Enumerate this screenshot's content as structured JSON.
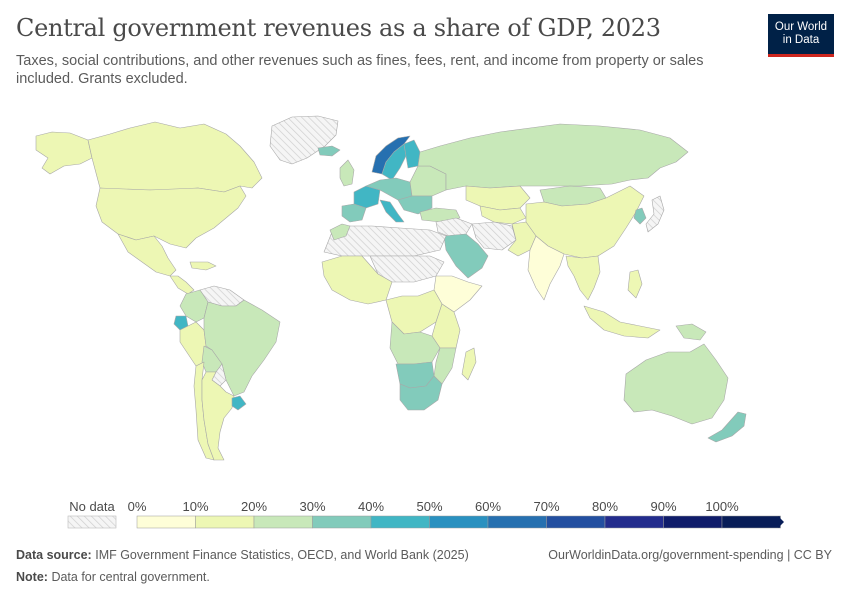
{
  "header": {
    "title": "Central government revenues as a share of GDP, 2023",
    "subtitle": "Taxes, social contributions, and other revenues such as fines, fees, rent, and income from property or sales included. Grants excluded.",
    "logo_line1": "Our World",
    "logo_line2": "in Data"
  },
  "legend": {
    "no_data_label": "No data",
    "ticks": [
      "0%",
      "10%",
      "20%",
      "30%",
      "40%",
      "50%",
      "60%",
      "70%",
      "80%",
      "90%",
      "100%"
    ],
    "bins": [
      {
        "range": "0-10%",
        "color": "#fefed8"
      },
      {
        "range": "10-20%",
        "color": "#edf7b4"
      },
      {
        "range": "20-30%",
        "color": "#c8e8b9"
      },
      {
        "range": "30-40%",
        "color": "#82cbbb"
      },
      {
        "range": "40-50%",
        "color": "#41b6c4"
      },
      {
        "range": "50-60%",
        "color": "#2a91c0"
      },
      {
        "range": "60-70%",
        "color": "#2670b0"
      },
      {
        "range": "70-80%",
        "color": "#234fa0"
      },
      {
        "range": "80-90%",
        "color": "#232c8d"
      },
      {
        "range": "90-100%",
        "color": "#0f1c6a"
      },
      {
        "range": "100%+",
        "color": "#081d58"
      }
    ],
    "no_data_color": "#eeeeee"
  },
  "footer": {
    "source_label": "Data source:",
    "source_text": "IMF Government Finance Statistics, OECD, and World Bank (2025)",
    "note_label": "Note:",
    "note_text": "Data for central government.",
    "url": "OurWorldinData.org/government-spending | CC BY"
  },
  "regions": [
    {
      "id": "greenland",
      "fill": "no-data"
    },
    {
      "id": "canada",
      "fill": "#edf7b4"
    },
    {
      "id": "alaska",
      "fill": "#edf7b4"
    },
    {
      "id": "usa",
      "fill": "#edf7b4"
    },
    {
      "id": "mexico",
      "fill": "#edf7b4"
    },
    {
      "id": "central-america",
      "fill": "#edf7b4"
    },
    {
      "id": "caribbean",
      "fill": "#edf7b4"
    },
    {
      "id": "venezuela",
      "fill": "no-data"
    },
    {
      "id": "colombia",
      "fill": "#c8e8b9"
    },
    {
      "id": "ecuador",
      "fill": "#41b6c4"
    },
    {
      "id": "peru",
      "fill": "#edf7b4"
    },
    {
      "id": "brazil",
      "fill": "#c8e8b9"
    },
    {
      "id": "bolivia",
      "fill": "#c8e8b9"
    },
    {
      "id": "paraguay",
      "fill": "no-data"
    },
    {
      "id": "chile",
      "fill": "#edf7b4"
    },
    {
      "id": "argentina",
      "fill": "#edf7b4"
    },
    {
      "id": "uruguay",
      "fill": "#41b6c4"
    },
    {
      "id": "iceland",
      "fill": "#82cbbb"
    },
    {
      "id": "ireland-uk",
      "fill": "#c8e8b9"
    },
    {
      "id": "norway",
      "fill": "#2670b0"
    },
    {
      "id": "sweden",
      "fill": "#41b6c4"
    },
    {
      "id": "finland",
      "fill": "#41b6c4"
    },
    {
      "id": "france",
      "fill": "#41b6c4"
    },
    {
      "id": "spain-portugal",
      "fill": "#82cbbb"
    },
    {
      "id": "central-europe",
      "fill": "#82cbbb"
    },
    {
      "id": "eastern-europe",
      "fill": "#c8e8b9"
    },
    {
      "id": "italy",
      "fill": "#41b6c4"
    },
    {
      "id": "balkans",
      "fill": "#82cbbb"
    },
    {
      "id": "russia",
      "fill": "#c8e8b9"
    },
    {
      "id": "kazakhstan",
      "fill": "#edf7b4"
    },
    {
      "id": "central-asia",
      "fill": "#edf7b4"
    },
    {
      "id": "mongolia",
      "fill": "#c8e8b9"
    },
    {
      "id": "china",
      "fill": "#edf7b4"
    },
    {
      "id": "korea",
      "fill": "#82cbbb"
    },
    {
      "id": "japan",
      "fill": "no-data"
    },
    {
      "id": "turkey",
      "fill": "#c8e8b9"
    },
    {
      "id": "middle-east",
      "fill": "no-data"
    },
    {
      "id": "saudi-arabia",
      "fill": "#82cbbb"
    },
    {
      "id": "iran",
      "fill": "no-data"
    },
    {
      "id": "afghanistan-pakistan",
      "fill": "#edf7b4"
    },
    {
      "id": "india",
      "fill": "#fefed8"
    },
    {
      "id": "southeast-asia",
      "fill": "#edf7b4"
    },
    {
      "id": "philippines",
      "fill": "#edf7b4"
    },
    {
      "id": "indonesia",
      "fill": "#edf7b4"
    },
    {
      "id": "png",
      "fill": "#c8e8b9"
    },
    {
      "id": "australia",
      "fill": "#c8e8b9"
    },
    {
      "id": "new-zealand",
      "fill": "#82cbbb"
    },
    {
      "id": "north-africa",
      "fill": "no-data"
    },
    {
      "id": "morocco",
      "fill": "#c8e8b9"
    },
    {
      "id": "west-africa",
      "fill": "#edf7b4"
    },
    {
      "id": "sahel",
      "fill": "no-data"
    },
    {
      "id": "horn-of-africa",
      "fill": "#fefed8"
    },
    {
      "id": "central-africa",
      "fill": "#edf7b4"
    },
    {
      "id": "east-africa",
      "fill": "#edf7b4"
    },
    {
      "id": "angola-zambia",
      "fill": "#c8e8b9"
    },
    {
      "id": "namibia-botswana",
      "fill": "#82cbbb"
    },
    {
      "id": "south-africa",
      "fill": "#82cbbb"
    },
    {
      "id": "mozambique",
      "fill": "#c8e8b9"
    },
    {
      "id": "madagascar",
      "fill": "#edf7b4"
    }
  ]
}
